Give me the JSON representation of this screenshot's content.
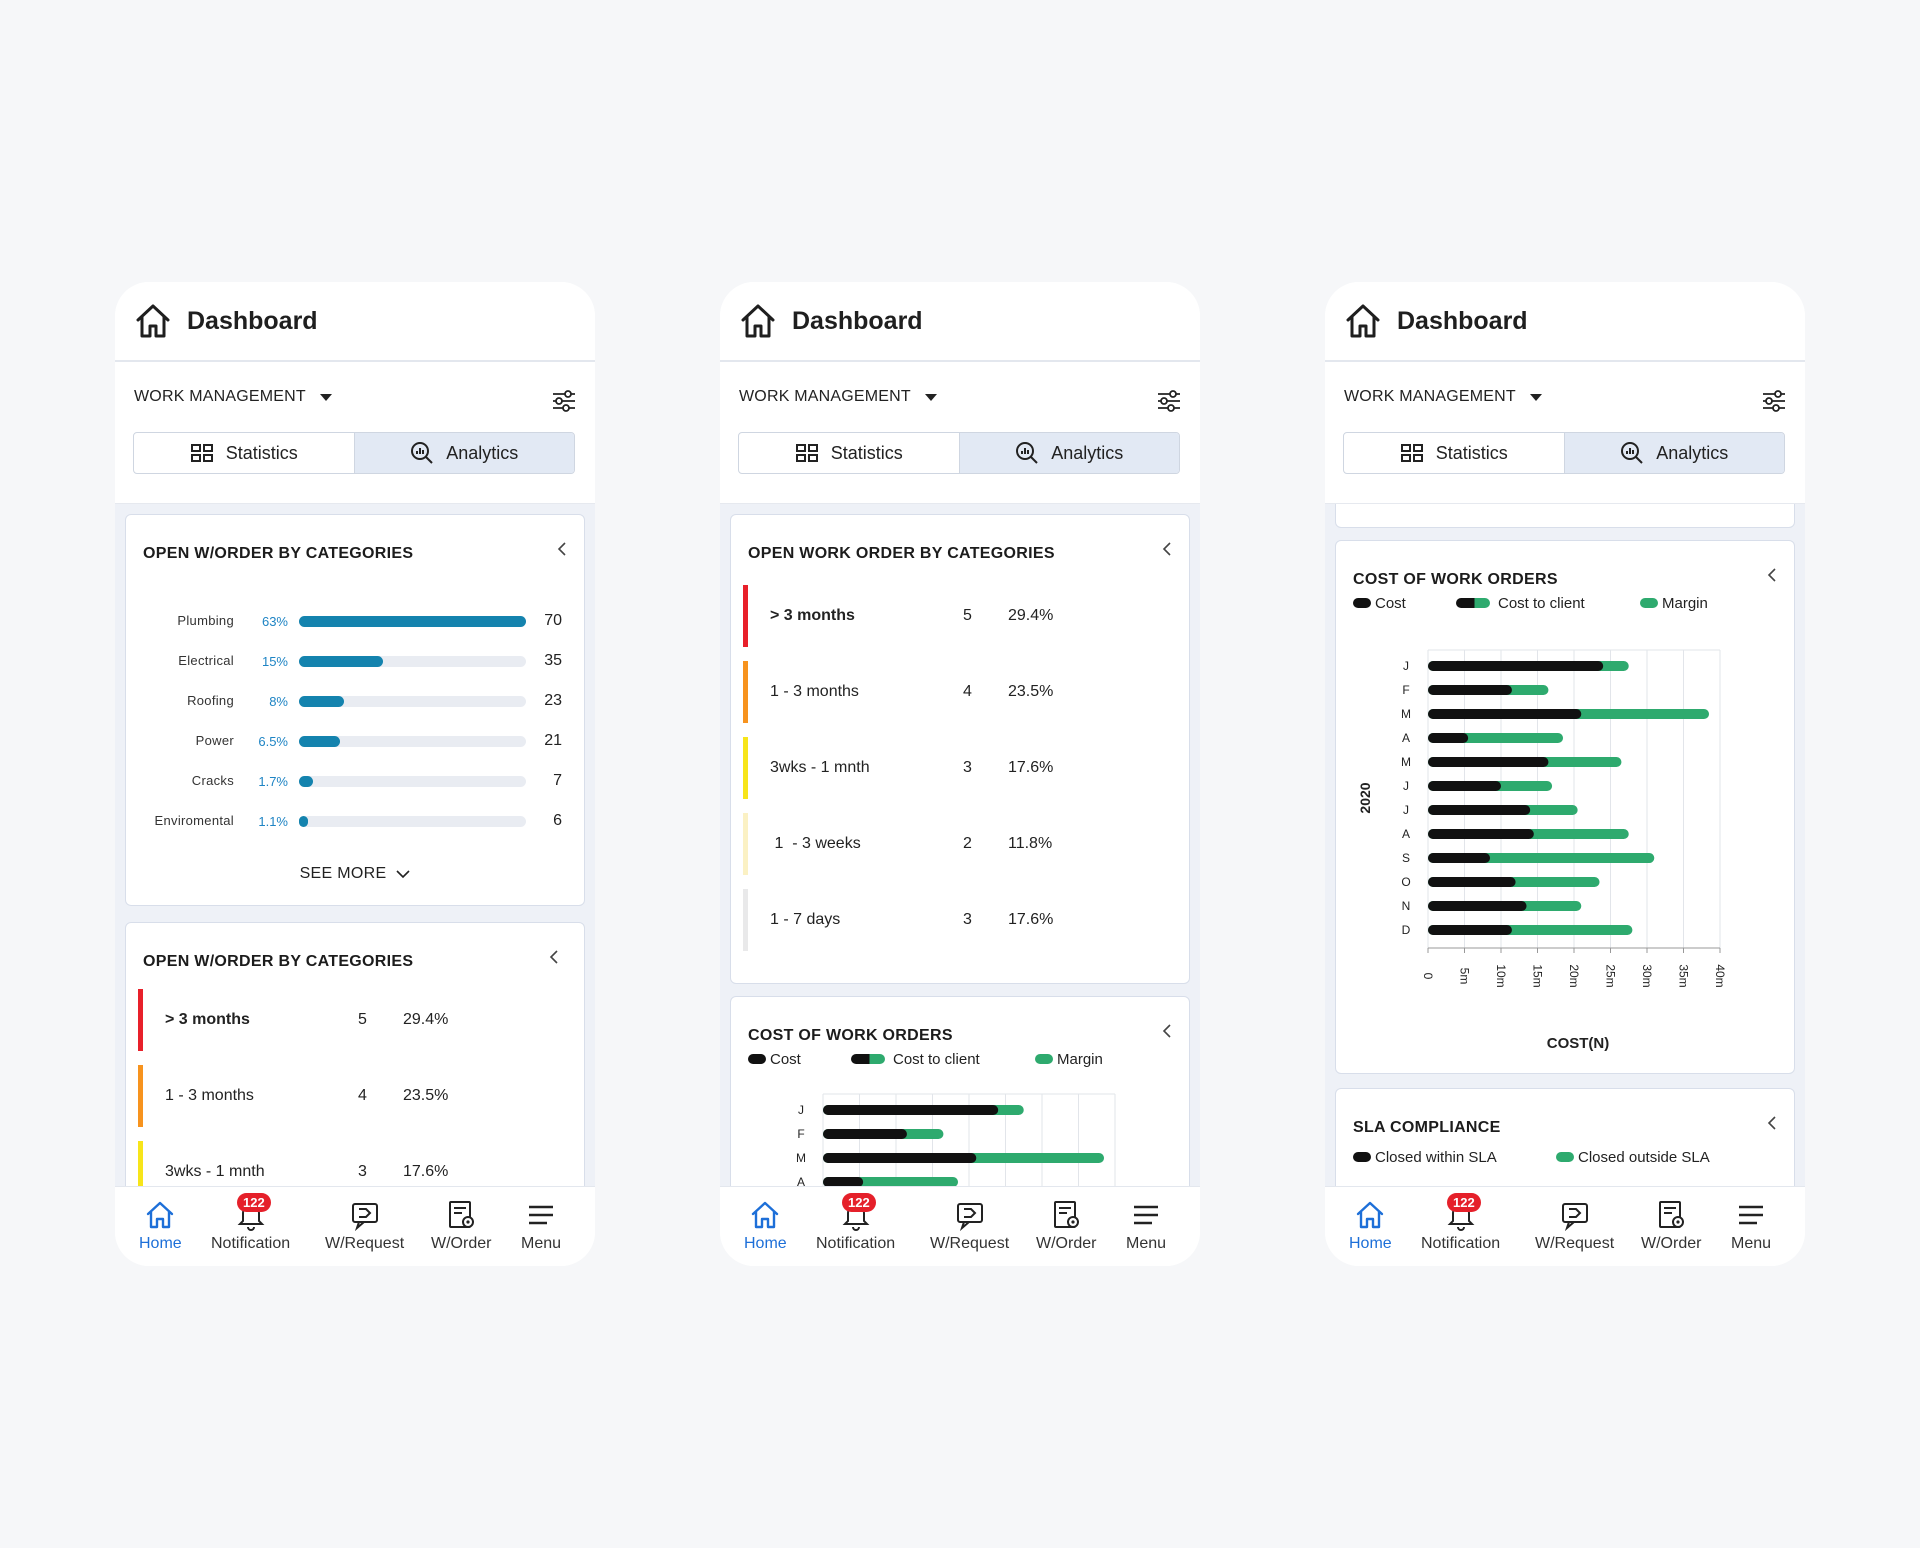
{
  "header": {
    "title": "Dashboard"
  },
  "module": {
    "label": "WORK MANAGEMENT"
  },
  "tabs": {
    "statistics": "Statistics",
    "analytics": "Analytics"
  },
  "nav": {
    "home": "Home",
    "notification": "Notification",
    "notification_count": "122",
    "wrequest": "W/Request",
    "worder": "W/Order",
    "menu": "Menu"
  },
  "categories_card": {
    "title": "OPEN W/ORDER BY CATEGORIES",
    "see_more": "SEE MORE",
    "rows": [
      {
        "label": "Plumbing",
        "pct": "63%",
        "value": "70",
        "fraction": 1.0
      },
      {
        "label": "Electrical",
        "pct": "15%",
        "value": "35",
        "fraction": 0.37
      },
      {
        "label": "Roofing",
        "pct": "8%",
        "value": "23",
        "fraction": 0.2
      },
      {
        "label": "Power",
        "pct": "6.5%",
        "value": "21",
        "fraction": 0.18
      },
      {
        "label": "Cracks",
        "pct": "1.7%",
        "value": "7",
        "fraction": 0.06
      },
      {
        "label": "Enviromental",
        "pct": "1.1%",
        "value": "6",
        "fraction": 0.04
      }
    ]
  },
  "age_card_1": {
    "title": "OPEN W/ORDER BY CATEGORIES"
  },
  "age_card_2": {
    "title": "OPEN WORK ORDER BY CATEGORIES"
  },
  "age_rows": [
    {
      "label": "> 3 months",
      "count": "5",
      "pct": "29.4%",
      "color": "#e8202a",
      "bold": true
    },
    {
      "label": "1 - 3 months",
      "count": "4",
      "pct": "23.5%",
      "color": "#f7931e",
      "bold": false
    },
    {
      "label": "3wks - 1 mnth",
      "count": "3",
      "pct": "17.6%",
      "color": "#f7e51a",
      "bold": false
    },
    {
      "label": " 1  - 3 weeks",
      "count": "2",
      "pct": "11.8%",
      "color": "#fbf1c4",
      "bold": false
    },
    {
      "label": "1 - 7 days",
      "count": "3",
      "pct": "17.6%",
      "color": "#e9e9ea",
      "bold": false
    }
  ],
  "cost_card": {
    "title": "COST OF WORK ORDERS",
    "legend": {
      "cost": "Cost",
      "cost_to_client": "Cost to client",
      "margin": "Margin"
    },
    "colors": {
      "cost": "#111111",
      "margin": "#2eaa6e"
    }
  },
  "sla_card": {
    "title": "SLA COMPLIANCE",
    "legend": {
      "within": "Closed within SLA",
      "outside": "Closed outside SLA"
    }
  },
  "chart_data": {
    "type": "bar",
    "title": "COST OF WORK ORDERS",
    "ylabel": "2020",
    "xlabel": "COST(N)",
    "categories": [
      "J",
      "F",
      "M",
      "A",
      "M",
      "J",
      "J",
      "A",
      "S",
      "O",
      "N",
      "D"
    ],
    "x_ticks": [
      "0",
      "5m",
      "10m",
      "15m",
      "20m",
      "25m",
      "30m",
      "35m",
      "40m"
    ],
    "xlim": [
      0,
      40
    ],
    "series": [
      {
        "name": "Cost",
        "values": [
          24,
          11.5,
          21,
          5.5,
          16.5,
          10,
          14,
          14.5,
          8.5,
          12,
          13.5,
          11.5
        ]
      },
      {
        "name": "Cost to client",
        "values": [
          27.5,
          16.5,
          38.5,
          18.5,
          26.5,
          17,
          20.5,
          27.5,
          31,
          23.5,
          21,
          28
        ]
      }
    ]
  }
}
